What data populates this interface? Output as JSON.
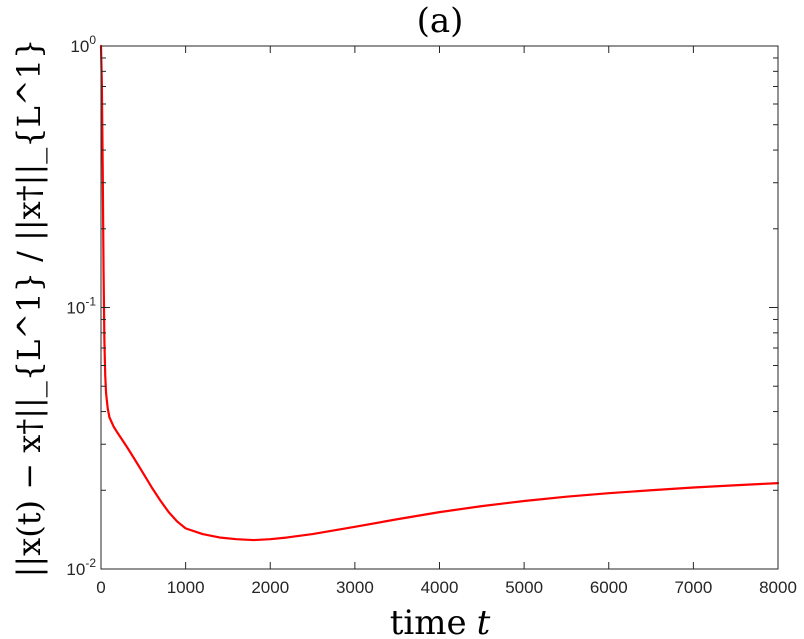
{
  "chart_data": {
    "type": "line",
    "title": "(a)",
    "xlabel": "time",
    "xlabel_var": "t",
    "ylabel": "||x(t) − x†||_{L^1} / ||x†||_{L^1}",
    "xlim": [
      0,
      8000
    ],
    "ylim": [
      0.01,
      1
    ],
    "yscale": "log",
    "grid": false,
    "x_ticks": [
      "0",
      "1000",
      "2000",
      "3000",
      "4000",
      "5000",
      "6000",
      "7000",
      "8000"
    ],
    "y_ticks": [
      {
        "base": "10",
        "exp": "0"
      },
      {
        "base": "10",
        "exp": "-1"
      },
      {
        "base": "10",
        "exp": "-2"
      }
    ],
    "series": [
      {
        "color": "#ff0000",
        "x": [
          0,
          10,
          20,
          30,
          40,
          50,
          60,
          80,
          100,
          150,
          200,
          300,
          400,
          500,
          600,
          700,
          800,
          900,
          1000,
          1200,
          1400,
          1600,
          1800,
          2000,
          2200,
          2500,
          3000,
          3500,
          4000,
          4500,
          5000,
          5500,
          6000,
          6500,
          7000,
          7500,
          8000
        ],
        "y": [
          1.0,
          0.72,
          0.35,
          0.14,
          0.075,
          0.055,
          0.047,
          0.041,
          0.038,
          0.035,
          0.033,
          0.0295,
          0.0262,
          0.0232,
          0.0205,
          0.0183,
          0.0165,
          0.0152,
          0.0143,
          0.0136,
          0.0132,
          0.013,
          0.0129,
          0.013,
          0.0132,
          0.0136,
          0.0145,
          0.0155,
          0.0165,
          0.0174,
          0.0182,
          0.0189,
          0.0195,
          0.02,
          0.0205,
          0.0209,
          0.0213
        ]
      }
    ]
  }
}
